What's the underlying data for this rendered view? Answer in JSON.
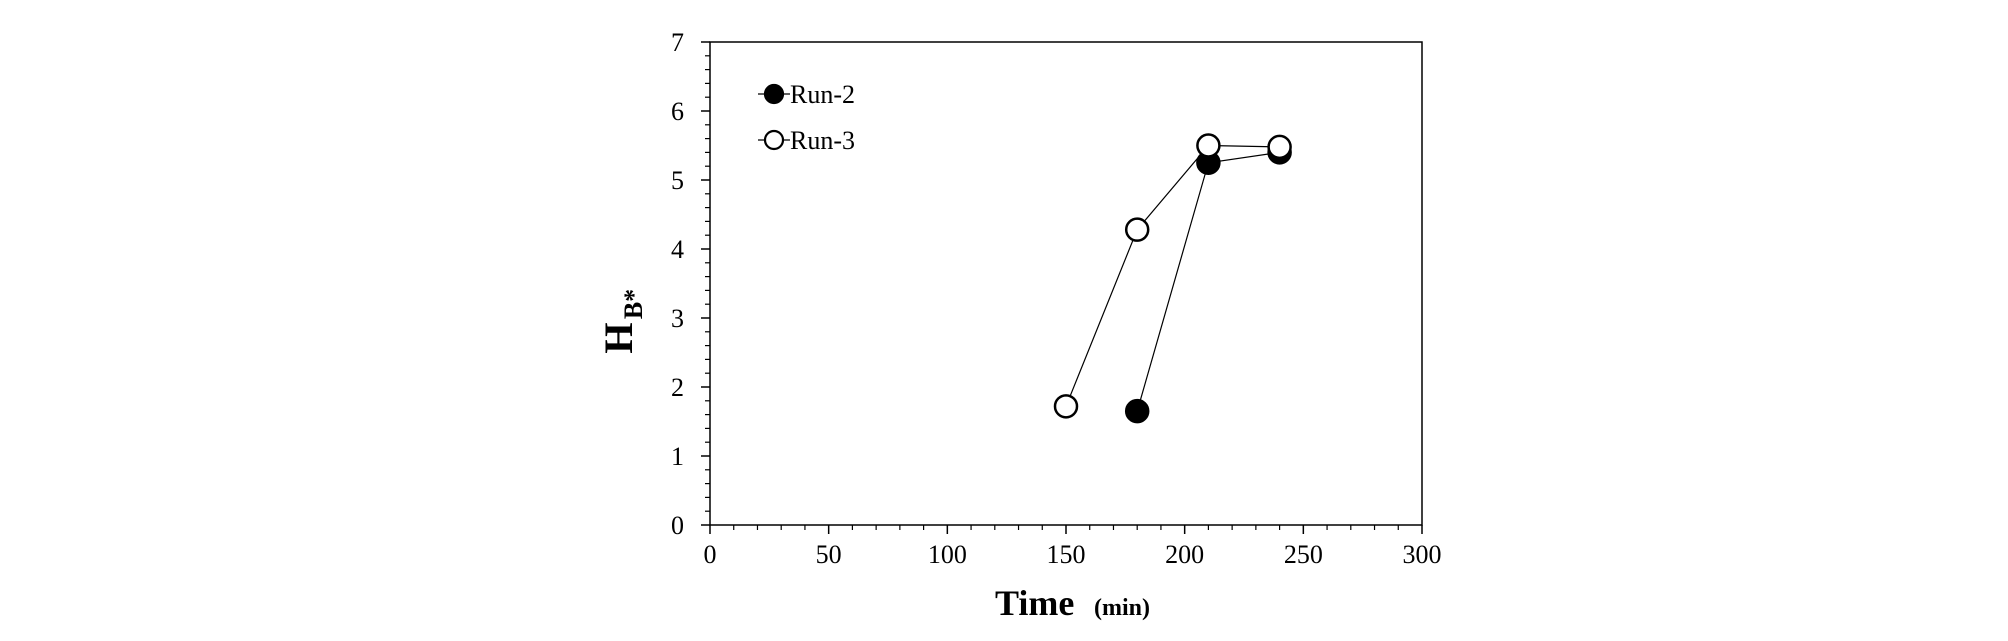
{
  "chart_data": {
    "type": "scatter",
    "title": "",
    "xlabel": "Time",
    "xlabel_unit": "(min)",
    "ylabel": "H",
    "ylabel_subscript": "B*",
    "xlim": [
      0,
      300
    ],
    "ylim": [
      0,
      7
    ],
    "xticks": [
      0,
      50,
      100,
      150,
      200,
      250,
      300
    ],
    "yticks": [
      0,
      1,
      2,
      3,
      4,
      5,
      6,
      7
    ],
    "grid": false,
    "legend_position": "top-left",
    "series": [
      {
        "name": "Run-2",
        "marker": "filled-circle",
        "color": "#000000",
        "x": [
          180,
          210,
          240
        ],
        "y": [
          1.65,
          5.25,
          5.4
        ]
      },
      {
        "name": "Run-3",
        "marker": "open-circle",
        "color": "#000000",
        "x": [
          150,
          180,
          210,
          240
        ],
        "y": [
          1.72,
          4.28,
          5.5,
          5.48
        ]
      }
    ]
  }
}
